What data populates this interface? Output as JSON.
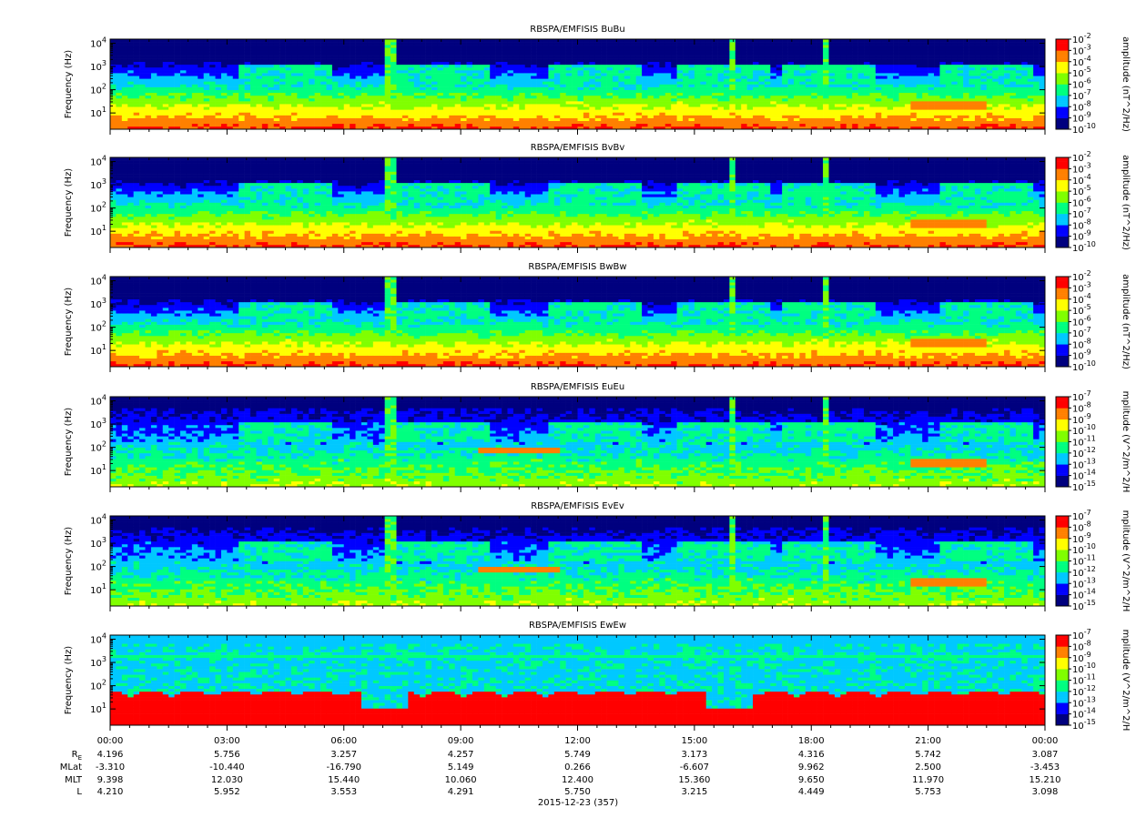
{
  "panels": [
    {
      "title": "RBSPA/EMFISIS  BuBu",
      "ylabel": "Frequency (Hz)",
      "cbar_label": "amplitude (nT^2/Hz)",
      "cbar_ticks": [
        "10^-2",
        "10^-3",
        "10^-4",
        "10^-5",
        "10^-6",
        "10^-7",
        "10^-8",
        "10^-9",
        "10^-10"
      ],
      "cbar_exp": [
        -2,
        -3,
        -4,
        -5,
        -6,
        -7,
        -8,
        -9,
        -10
      ],
      "kind": "B"
    },
    {
      "title": "RBSPA/EMFISIS  BvBv",
      "ylabel": "Frequency (Hz)",
      "cbar_label": "amplitude (nT^2/Hz)",
      "cbar_ticks": [
        "10^-2",
        "10^-3",
        "10^-4",
        "10^-5",
        "10^-6",
        "10^-7",
        "10^-8",
        "10^-9",
        "10^-10"
      ],
      "cbar_exp": [
        -2,
        -3,
        -4,
        -5,
        -6,
        -7,
        -8,
        -9,
        -10
      ],
      "kind": "B"
    },
    {
      "title": "RBSPA/EMFISIS  BwBw",
      "ylabel": "Frequency (Hz)",
      "cbar_label": "amplitude (nT^2/Hz)",
      "cbar_ticks": [
        "10^-2",
        "10^-3",
        "10^-4",
        "10^-5",
        "10^-6",
        "10^-7",
        "10^-8",
        "10^-9",
        "10^-10"
      ],
      "cbar_exp": [
        -2,
        -3,
        -4,
        -5,
        -6,
        -7,
        -8,
        -9,
        -10
      ],
      "kind": "B"
    },
    {
      "title": "RBSPA/EMFISIS  EuEu",
      "ylabel": "Frequency (Hz)",
      "cbar_label": "mplitude (V^2/m^2/H",
      "cbar_ticks": [
        "10^-7",
        "10^-8",
        "10^-9",
        "10^-10",
        "10^-11",
        "10^-12",
        "10^-13",
        "10^-14",
        "10^-15"
      ],
      "cbar_exp": [
        -7,
        -8,
        -9,
        -10,
        -11,
        -12,
        -13,
        -14,
        -15
      ],
      "kind": "E"
    },
    {
      "title": "RBSPA/EMFISIS  EvEv",
      "ylabel": "Frequency (Hz)",
      "cbar_label": "mplitude (V^2/m^2/H",
      "cbar_ticks": [
        "10^-7",
        "10^-8",
        "10^-9",
        "10^-10",
        "10^-11",
        "10^-12",
        "10^-13",
        "10^-14",
        "10^-15"
      ],
      "cbar_exp": [
        -7,
        -8,
        -9,
        -10,
        -11,
        -12,
        -13,
        -14,
        -15
      ],
      "kind": "E"
    },
    {
      "title": "RBSPA/EMFISIS  EwEw",
      "ylabel": "Frequency (Hz)",
      "cbar_label": "mplitude (V^2/m^2/H",
      "cbar_ticks": [
        "10^-7",
        "10^-8",
        "10^-9",
        "10^-10",
        "10^-11",
        "10^-12",
        "10^-13",
        "10^-14",
        "10^-15"
      ],
      "cbar_exp": [
        -7,
        -8,
        -9,
        -10,
        -11,
        -12,
        -13,
        -14,
        -15
      ],
      "kind": "Ew"
    }
  ],
  "chart_data": {
    "type": "heatmap",
    "y_scale": "log",
    "ylim_hz": [
      2,
      15000
    ],
    "y_ticks": [
      "10^1",
      "10^2",
      "10^3",
      "10^4"
    ],
    "y_tick_exp": [
      1,
      2,
      3,
      4
    ],
    "x_ticks": [
      "00:00",
      "03:00",
      "06:00",
      "09:00",
      "12:00",
      "15:00",
      "18:00",
      "21:00",
      "00:00"
    ],
    "x_range_hours": [
      0,
      24
    ],
    "date": "2015-12-23 (357)",
    "colormap": [
      "#00007f",
      "#0000ff",
      "#00c8ff",
      "#00ff80",
      "#80ff00",
      "#ffff00",
      "#ff8000",
      "#ff0000"
    ]
  },
  "ephemeris": {
    "labels": [
      "R_E",
      "MLat",
      "MLT",
      "L"
    ],
    "rows": [
      [
        "4.196",
        "5.756",
        "3.257",
        "4.257",
        "5.749",
        "3.173",
        "4.316",
        "5.742",
        "3.087"
      ],
      [
        "-3.310",
        "-10.440",
        "-16.790",
        "5.149",
        "0.266",
        "-6.607",
        "9.962",
        "2.500",
        "-3.453"
      ],
      [
        "9.398",
        "12.030",
        "15.440",
        "10.060",
        "12.400",
        "15.360",
        "9.650",
        "11.970",
        "15.210"
      ],
      [
        "4.210",
        "5.952",
        "3.553",
        "4.291",
        "5.750",
        "3.215",
        "4.449",
        "5.753",
        "3.098"
      ]
    ]
  }
}
